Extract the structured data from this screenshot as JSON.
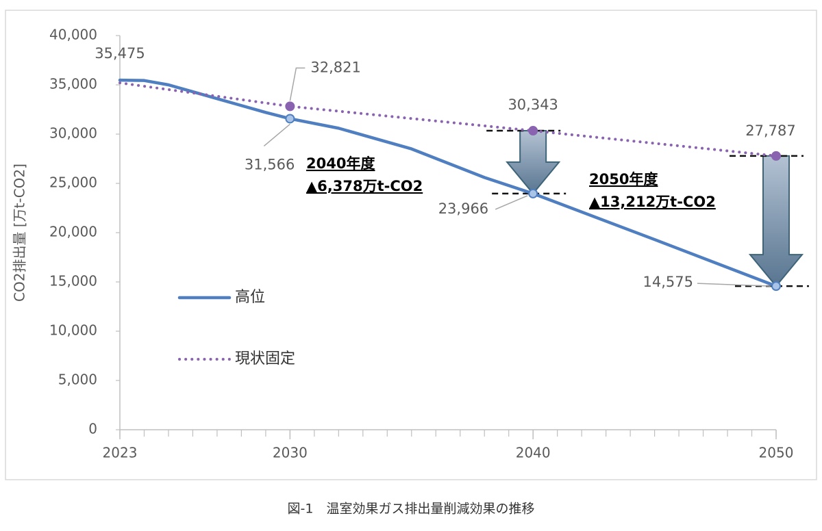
{
  "chart_data": {
    "type": "line",
    "caption": "図-1　温室効果ガス排出量削減効果の推移",
    "y_label": "CO2排出量 [万t-CO2]",
    "xlim": [
      2023,
      2050
    ],
    "xticks": [
      2023,
      2030,
      2040,
      2050
    ],
    "ylim": [
      0,
      40000
    ],
    "yticks": [
      0,
      {
        "value": 5000,
        "label": "5,000"
      },
      {
        "value": 10000,
        "label": "10,000"
      },
      {
        "value": 15000,
        "label": "15,000"
      },
      {
        "value": 20000,
        "label": "20,000"
      },
      {
        "value": 25000,
        "label": "25,000"
      },
      {
        "value": 30000,
        "label": "30,000"
      },
      {
        "value": 35000,
        "label": "35,000"
      },
      {
        "value": 40000,
        "label": "40,000"
      }
    ],
    "grid": false,
    "legend": "center-left",
    "series": [
      {
        "name": "高位",
        "color": "#4f7fc0",
        "style": "solid",
        "x": [
          2023,
          2024,
          2025,
          2026,
          2027,
          2028,
          2029,
          2030,
          2032,
          2035,
          2038,
          2040,
          2045,
          2050
        ],
        "values": [
          35475,
          35440,
          35000,
          34300,
          33600,
          32900,
          32200,
          31566,
          30600,
          28500,
          25600,
          23966,
          19300,
          14575
        ],
        "value_labels": [
          "35,475",
          null,
          null,
          null,
          null,
          null,
          null,
          "31,566",
          null,
          null,
          null,
          "23,966",
          null,
          "14,575"
        ]
      },
      {
        "name": "現状固定",
        "color": "#8a63b0",
        "style": "dotted",
        "x": [
          2023,
          2030,
          2040,
          2050
        ],
        "values": [
          35200,
          32821,
          30343,
          27787
        ],
        "value_labels": [
          null,
          "32,821",
          "30,343",
          "27,787"
        ]
      }
    ],
    "annotations": [
      {
        "year": "2040年度",
        "reduction": "▲6,378万t-CO2",
        "x": 2040,
        "from": 30343,
        "to": 23966
      },
      {
        "year": "2050年度",
        "reduction": "▲13,212万t-CO2",
        "x": 2050,
        "from": 27787,
        "to": 14575
      }
    ]
  }
}
